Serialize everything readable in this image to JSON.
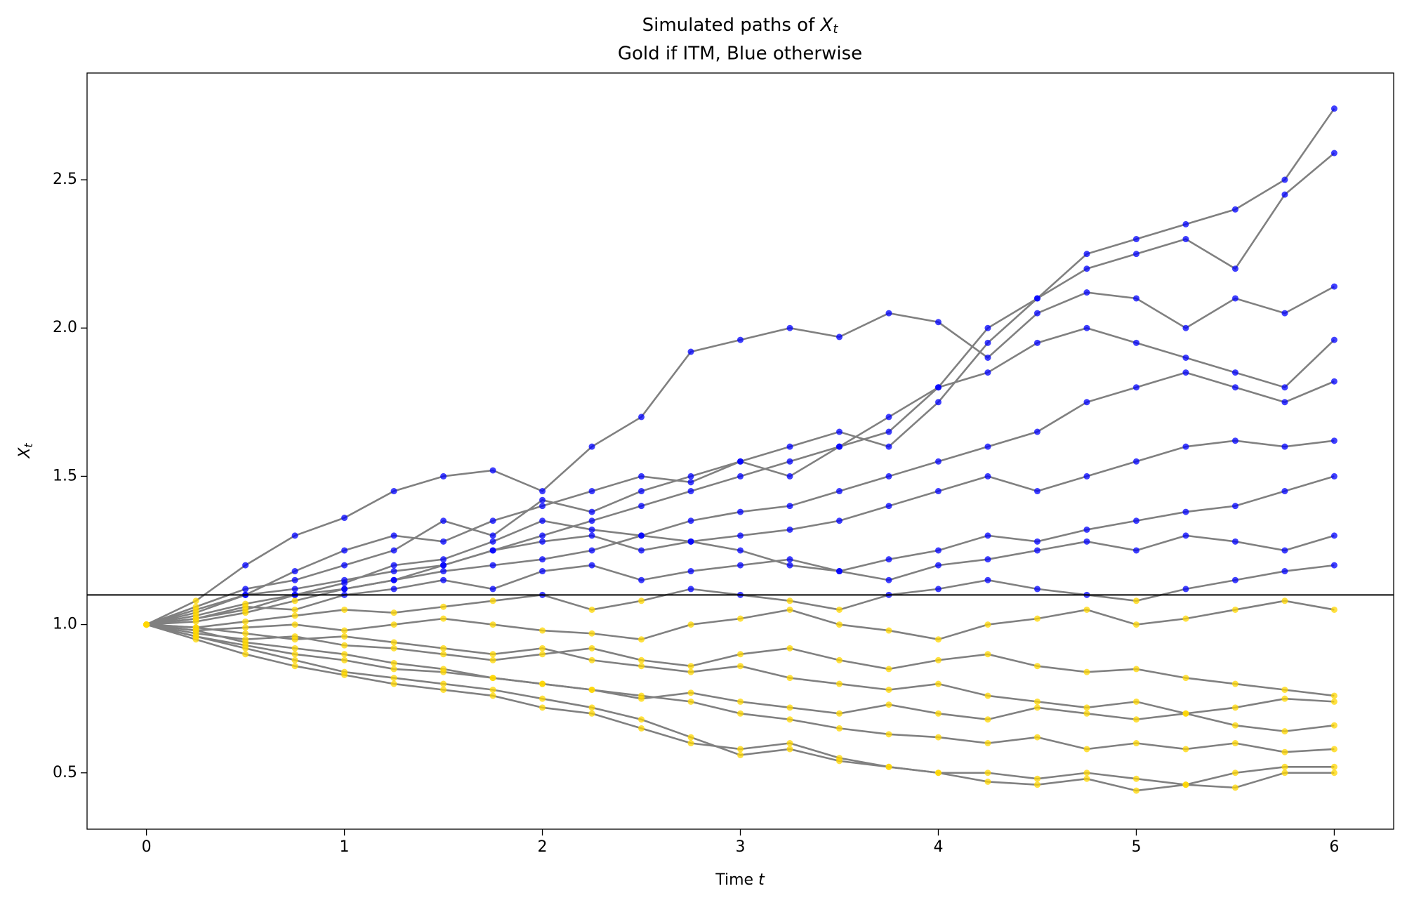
{
  "chart_data": {
    "type": "line",
    "title": {
      "text": "Simulated paths of ",
      "var": "X",
      "sub": "t"
    },
    "subtitle": "Gold if ITM, Blue otherwise",
    "xlabel": {
      "text": "Time ",
      "var": "t"
    },
    "ylabel": {
      "var": "X",
      "sub": "t"
    },
    "x": [
      0,
      0.25,
      0.5,
      0.75,
      1,
      1.25,
      1.5,
      1.75,
      2,
      2.25,
      2.5,
      2.75,
      3,
      3.25,
      3.5,
      3.75,
      4,
      4.25,
      4.5,
      4.75,
      5,
      5.25,
      5.5,
      5.75,
      6
    ],
    "series": [
      {
        "values": [
          1,
          1.08,
          1.2,
          1.3,
          1.36,
          1.45,
          1.5,
          1.52,
          1.45,
          1.6,
          1.7,
          1.92,
          1.96,
          2.0,
          1.97,
          2.05,
          2.02,
          1.9,
          2.05,
          2.12,
          2.1,
          2.0,
          2.1,
          2.05,
          2.14
        ]
      },
      {
        "values": [
          1,
          1.05,
          1.1,
          1.18,
          1.25,
          1.3,
          1.28,
          1.35,
          1.4,
          1.45,
          1.5,
          1.48,
          1.55,
          1.6,
          1.65,
          1.6,
          1.75,
          1.95,
          2.1,
          2.25,
          2.3,
          2.35,
          2.4,
          2.5,
          2.74
        ]
      },
      {
        "values": [
          1,
          1.06,
          1.12,
          1.15,
          1.2,
          1.25,
          1.35,
          1.3,
          1.42,
          1.38,
          1.45,
          1.5,
          1.55,
          1.5,
          1.6,
          1.65,
          1.8,
          2.0,
          2.1,
          2.2,
          2.25,
          2.3,
          2.2,
          2.45,
          2.59
        ]
      },
      {
        "values": [
          1,
          1.04,
          1.1,
          1.12,
          1.15,
          1.18,
          1.2,
          1.25,
          1.3,
          1.35,
          1.4,
          1.45,
          1.5,
          1.55,
          1.6,
          1.7,
          1.8,
          1.85,
          1.95,
          2.0,
          1.95,
          1.9,
          1.85,
          1.8,
          1.96
        ]
      },
      {
        "values": [
          1,
          1.03,
          1.07,
          1.1,
          1.14,
          1.2,
          1.22,
          1.28,
          1.35,
          1.32,
          1.3,
          1.35,
          1.38,
          1.4,
          1.45,
          1.5,
          1.55,
          1.6,
          1.65,
          1.75,
          1.8,
          1.85,
          1.8,
          1.75,
          1.82
        ]
      },
      {
        "values": [
          1,
          1.02,
          1.05,
          1.1,
          1.12,
          1.15,
          1.2,
          1.25,
          1.28,
          1.3,
          1.25,
          1.28,
          1.3,
          1.32,
          1.35,
          1.4,
          1.45,
          1.5,
          1.45,
          1.5,
          1.55,
          1.6,
          1.62,
          1.6,
          1.62
        ]
      },
      {
        "values": [
          1,
          1.01,
          1.04,
          1.08,
          1.12,
          1.15,
          1.18,
          1.2,
          1.22,
          1.25,
          1.3,
          1.28,
          1.25,
          1.2,
          1.18,
          1.22,
          1.25,
          1.3,
          1.28,
          1.32,
          1.35,
          1.38,
          1.4,
          1.45,
          1.5
        ]
      },
      {
        "values": [
          1,
          1.02,
          1.06,
          1.05,
          1.1,
          1.12,
          1.15,
          1.12,
          1.18,
          1.2,
          1.15,
          1.18,
          1.2,
          1.22,
          1.18,
          1.15,
          1.2,
          1.22,
          1.25,
          1.28,
          1.25,
          1.3,
          1.28,
          1.25,
          1.3
        ]
      },
      {
        "values": [
          1,
          0.99,
          1.01,
          1.03,
          1.05,
          1.04,
          1.06,
          1.08,
          1.1,
          1.05,
          1.08,
          1.12,
          1.1,
          1.08,
          1.05,
          1.1,
          1.12,
          1.15,
          1.12,
          1.1,
          1.08,
          1.12,
          1.15,
          1.18,
          1.2
        ]
      },
      {
        "values": [
          1,
          0.98,
          0.99,
          1.0,
          0.98,
          1.0,
          1.02,
          1.0,
          0.98,
          0.97,
          0.95,
          1.0,
          1.02,
          1.05,
          1.0,
          0.98,
          0.95,
          1.0,
          1.02,
          1.05,
          1.0,
          1.02,
          1.05,
          1.08,
          1.05
        ]
      },
      {
        "values": [
          1,
          0.97,
          0.95,
          0.96,
          0.93,
          0.92,
          0.9,
          0.88,
          0.9,
          0.92,
          0.88,
          0.86,
          0.9,
          0.92,
          0.88,
          0.85,
          0.88,
          0.9,
          0.86,
          0.84,
          0.85,
          0.82,
          0.8,
          0.78,
          0.76
        ]
      },
      {
        "values": [
          1,
          0.96,
          0.93,
          0.9,
          0.88,
          0.85,
          0.84,
          0.82,
          0.8,
          0.78,
          0.75,
          0.77,
          0.74,
          0.72,
          0.7,
          0.73,
          0.7,
          0.68,
          0.72,
          0.7,
          0.68,
          0.7,
          0.66,
          0.64,
          0.66
        ]
      },
      {
        "values": [
          1,
          0.95,
          0.9,
          0.86,
          0.83,
          0.8,
          0.78,
          0.76,
          0.72,
          0.7,
          0.65,
          0.6,
          0.58,
          0.6,
          0.55,
          0.52,
          0.5,
          0.5,
          0.48,
          0.5,
          0.48,
          0.46,
          0.5,
          0.52,
          0.52
        ]
      },
      {
        "values": [
          1,
          0.96,
          0.92,
          0.88,
          0.84,
          0.82,
          0.8,
          0.78,
          0.75,
          0.72,
          0.68,
          0.62,
          0.56,
          0.58,
          0.54,
          0.52,
          0.5,
          0.47,
          0.46,
          0.48,
          0.44,
          0.46,
          0.45,
          0.5,
          0.5
        ]
      },
      {
        "values": [
          1,
          0.98,
          0.94,
          0.92,
          0.9,
          0.87,
          0.85,
          0.82,
          0.8,
          0.78,
          0.76,
          0.74,
          0.7,
          0.68,
          0.65,
          0.63,
          0.62,
          0.6,
          0.62,
          0.58,
          0.6,
          0.58,
          0.6,
          0.57,
          0.58
        ]
      },
      {
        "values": [
          1,
          0.99,
          0.97,
          0.95,
          0.96,
          0.94,
          0.92,
          0.9,
          0.92,
          0.88,
          0.86,
          0.84,
          0.86,
          0.82,
          0.8,
          0.78,
          0.8,
          0.76,
          0.74,
          0.72,
          0.74,
          0.7,
          0.72,
          0.75,
          0.74
        ]
      }
    ],
    "line_color": "#808080",
    "itm_color": "#ffd700",
    "otm_color": "#0000ff",
    "hline": 1.1,
    "hline_color": "#000000",
    "xlim": [
      -0.3,
      6.3
    ],
    "xticks": [
      0,
      1,
      2,
      3,
      4,
      5,
      6
    ],
    "ylim": [
      0.31,
      2.86
    ],
    "yticks": [
      0.5,
      {
        "value": 1,
        "label": "1.0"
      },
      1.5,
      {
        "value": 2,
        "label": "2.0"
      },
      2.5
    ],
    "grid": false
  }
}
